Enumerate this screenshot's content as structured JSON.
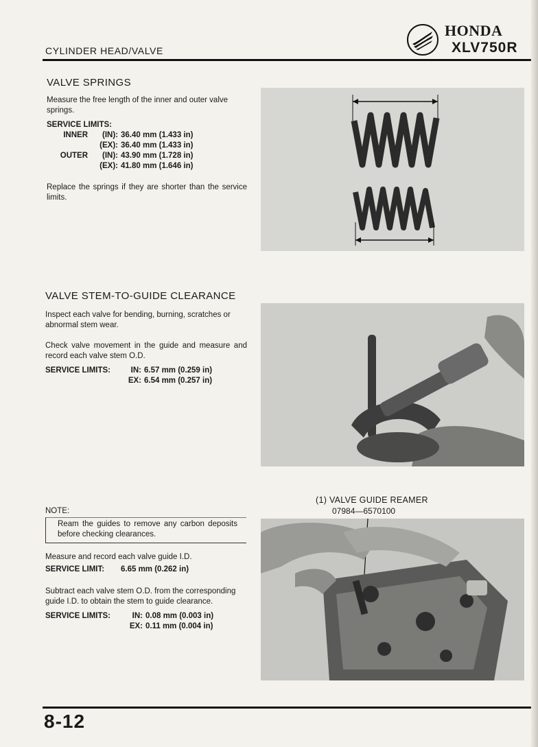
{
  "header": {
    "section": "CYLINDER HEAD/VALVE",
    "brand": "HONDA",
    "model": "XLV750R"
  },
  "valve_springs": {
    "title": "VALVE SPRINGS",
    "intro": "Measure the free length of the inner and outer valve springs.",
    "limits_label": "SERVICE LIMITS:",
    "limits": [
      {
        "name": "INNER",
        "type": "(IN):",
        "value": "36.40 mm (1.433 in)"
      },
      {
        "name": "",
        "type": "(EX):",
        "value": "36.40 mm (1.433 in)"
      },
      {
        "name": "OUTER",
        "type": "(IN):",
        "value": "43.90 mm (1.728 in)"
      },
      {
        "name": "",
        "type": "(EX):",
        "value": "41.80 mm (1.646 in)"
      }
    ],
    "replace": "Replace the springs if they are shorter than the service limits."
  },
  "stem_guide": {
    "title": "VALVE STEM-TO-GUIDE CLEARANCE",
    "inspect": "Inspect each valve for bending, burning, scratches or abnormal stem wear.",
    "check": "Check valve movement in the guide and measure and record each valve stem O.D.",
    "limits_label": "SERVICE LIMITS:",
    "limits": [
      {
        "type": "IN:",
        "value": "6.57 mm (0.259 in)"
      },
      {
        "type": "EX:",
        "value": "6.54 mm (0.257 in)"
      }
    ]
  },
  "guide": {
    "note_label": "NOTE:",
    "note": "Ream the guides to remove any carbon deposits before checking clearances.",
    "measure": "Measure and record each valve guide I.D.",
    "limit_label": "SERVICE LIMIT:",
    "limit_value": "6.65 mm (0.262 in)",
    "subtract": "Subtract each valve stem O.D. from the corresponding guide I.D. to obtain the stem to guide clearance.",
    "limits_label": "SERVICE LIMITS:",
    "limits": [
      {
        "type": "IN:",
        "value": "0.08 mm (0.003 in)"
      },
      {
        "type": "EX:",
        "value": "0.11 mm (0.004 in)"
      }
    ]
  },
  "reamer": {
    "callout": "(1) VALVE GUIDE REAMER",
    "part_number": "07984—6570100"
  },
  "footer": {
    "page": "8-12"
  }
}
